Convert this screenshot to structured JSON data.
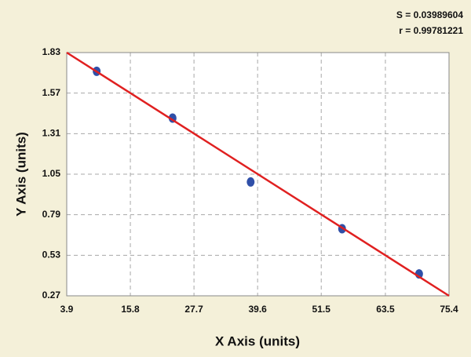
{
  "chart_data": {
    "type": "scatter",
    "annotations": [
      "S = 0.03989604",
      "r = 0.99781221"
    ],
    "x_label": "X Axis (units)",
    "y_label": "Y Axis (units)",
    "x": [
      9.5,
      23.7,
      38.3,
      55.4,
      69.8
    ],
    "values": [
      1.71,
      1.41,
      1.0,
      0.7,
      0.41
    ],
    "color": "#2f4fa8",
    "fit": {
      "color": "#e02020",
      "x": [
        3.9,
        75.4
      ],
      "values": [
        1.83,
        0.27
      ]
    },
    "xlim": [
      3.9,
      75.4
    ],
    "xticks": [
      3.9,
      15.8,
      27.7,
      39.6,
      51.5,
      63.5,
      75.4
    ],
    "ylim": [
      0.27,
      1.83
    ],
    "yticks": [
      1.83,
      1.57,
      1.31,
      1.05,
      0.79,
      0.53,
      0.27
    ],
    "grid": true
  }
}
